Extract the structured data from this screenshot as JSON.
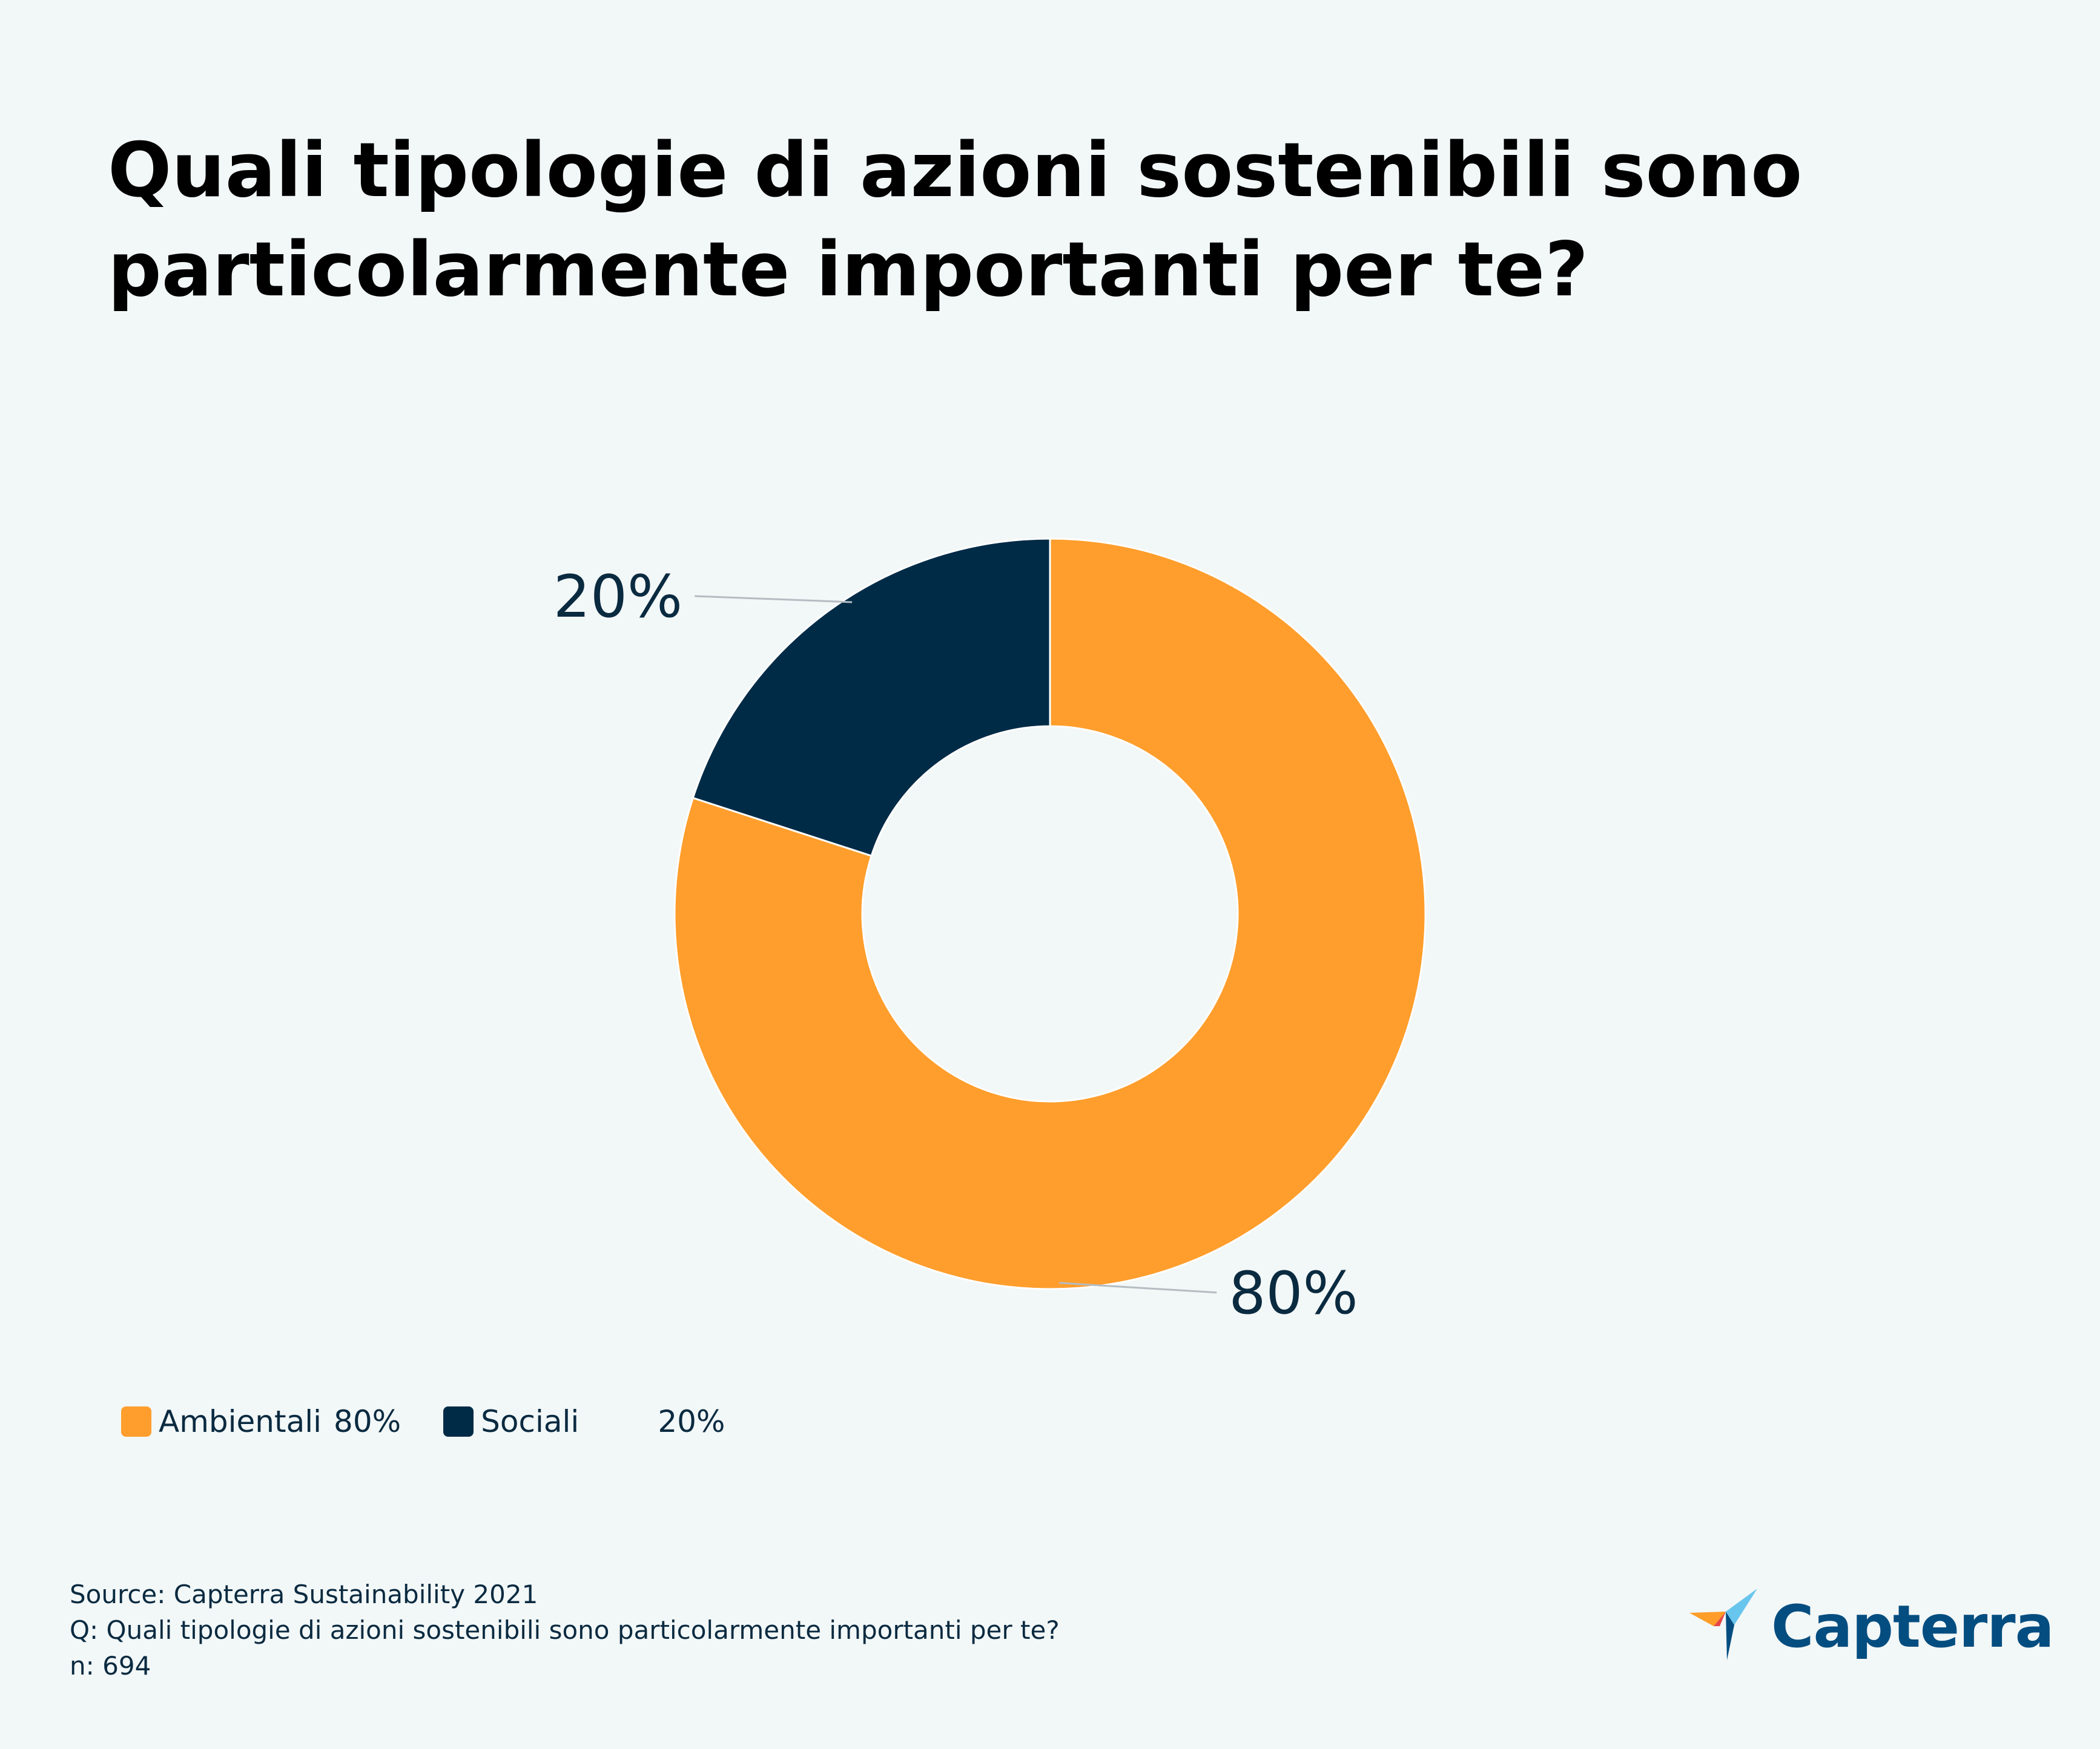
{
  "title": "Quali tipologie di azioni sostenibili sono particolarmente importanti per te?",
  "chart_data": {
    "type": "pie",
    "subtype": "donut",
    "title": "Quali tipologie di azioni sostenibili sono particolarmente importanti per te?",
    "categories": [
      "Ambientali",
      "Sociali"
    ],
    "values": [
      80,
      20
    ],
    "labels": [
      "80%",
      "20%"
    ],
    "unit": "%",
    "colors": [
      "#ff9e2c",
      "#002b47"
    ],
    "legend_position": "bottom-left"
  },
  "legend": [
    {
      "label": "Ambientali",
      "value": "80%",
      "color": "#ff9e2c"
    },
    {
      "label": "Sociali",
      "value": "20%",
      "color": "#002b47"
    }
  ],
  "footer": {
    "source": "Source: Capterra Sustainability 2021",
    "question": "Q: Quali tipologie di azioni sostenibili sono particolarmente importanti per te?",
    "n": "n: 694"
  },
  "logo": {
    "text": "Capterra",
    "icon": "capterra-arrow-icon"
  }
}
